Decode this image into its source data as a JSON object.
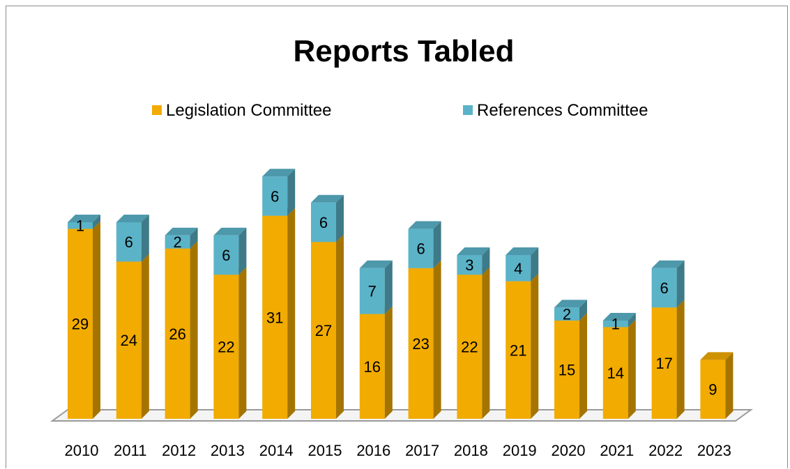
{
  "chart_data": {
    "type": "bar",
    "stacked": true,
    "style": "3d-column",
    "title": "Reports Tabled",
    "xlabel": "",
    "ylabel": "",
    "categories": [
      "2010",
      "2011",
      "2012",
      "2013",
      "2014",
      "2015",
      "2016",
      "2017",
      "2018",
      "2019",
      "2020",
      "2021",
      "2022",
      "2023"
    ],
    "series": [
      {
        "name": "Legislation Committee",
        "color": "#f2ab00",
        "values": [
          29,
          24,
          26,
          22,
          31,
          27,
          16,
          23,
          22,
          21,
          15,
          14,
          17,
          9
        ]
      },
      {
        "name": "References Committee",
        "color": "#5bb3c8",
        "values": [
          1,
          6,
          2,
          6,
          6,
          6,
          7,
          6,
          3,
          4,
          2,
          1,
          6,
          0
        ]
      }
    ],
    "ylim": [
      0,
      37
    ],
    "grid": false,
    "legend_position": "top",
    "data_labels": true
  }
}
